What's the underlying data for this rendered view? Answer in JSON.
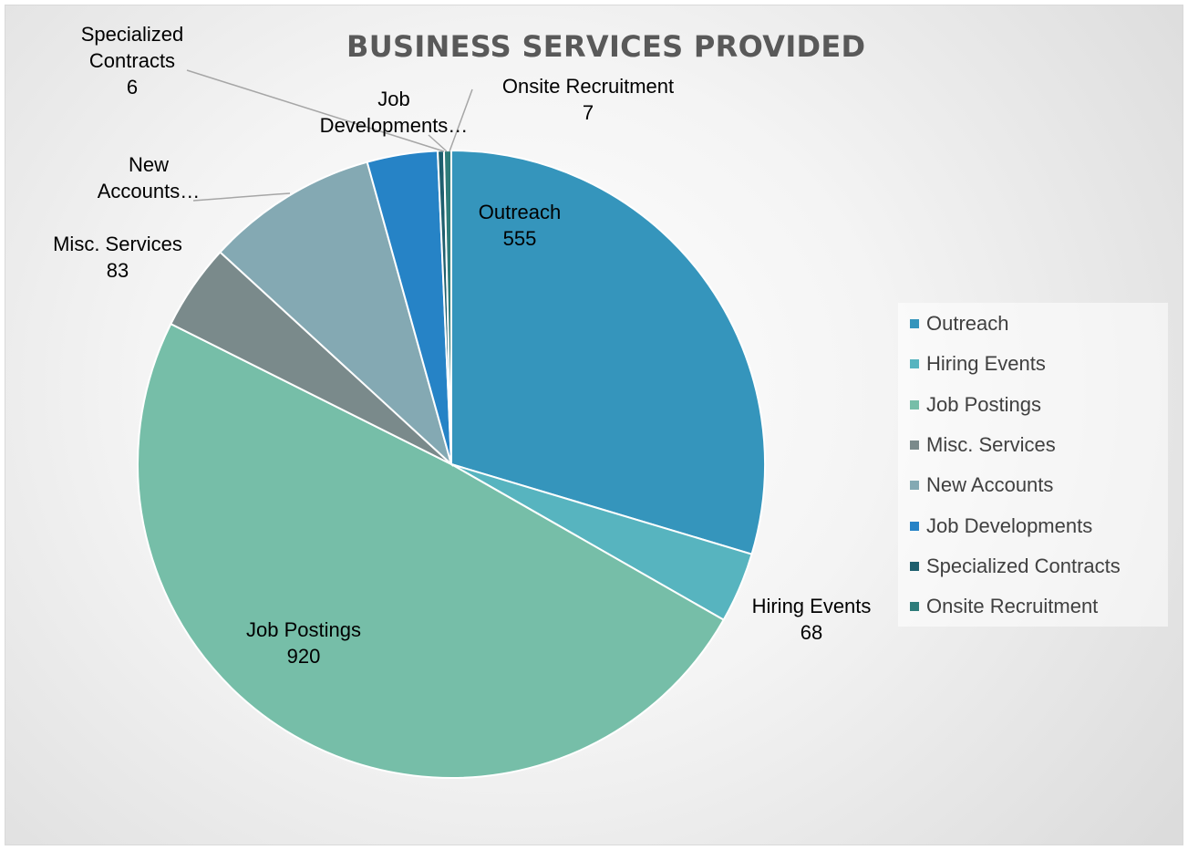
{
  "chart_data": {
    "type": "pie",
    "title": "BUSINESS SERVICES PROVIDED",
    "legend_position": "right",
    "slices": [
      {
        "name": "Outreach",
        "value": 555,
        "color": "#3595BC",
        "label_name": "Outreach",
        "label_value": "555"
      },
      {
        "name": "Hiring Events",
        "value": 68,
        "color": "#57B4BF",
        "label_name": "Hiring Events",
        "label_value": "68"
      },
      {
        "name": "Job Postings",
        "value": 920,
        "color": "#76BEA8",
        "label_name": "Job Postings",
        "label_value": "920"
      },
      {
        "name": "Misc. Services",
        "value": 83,
        "color": "#7A8A8B",
        "label_name": "Misc. Services",
        "label_value": "83"
      },
      {
        "name": "New Accounts",
        "value": 166,
        "color": "#84A9B3",
        "label_name": "New Accounts…",
        "label_value": ""
      },
      {
        "name": "Job Developments",
        "value": 68,
        "color": "#2683C6",
        "label_name": "Job Developments…",
        "label_value": ""
      },
      {
        "name": "Specialized Contracts",
        "value": 6,
        "color": "#1E5F6E",
        "label_name": "Specialized Contracts",
        "label_value": "6"
      },
      {
        "name": "Onsite Recruitment",
        "value": 7,
        "color": "#2E7C7A",
        "label_name": "Onsite Recruitment",
        "label_value": "7"
      }
    ]
  }
}
